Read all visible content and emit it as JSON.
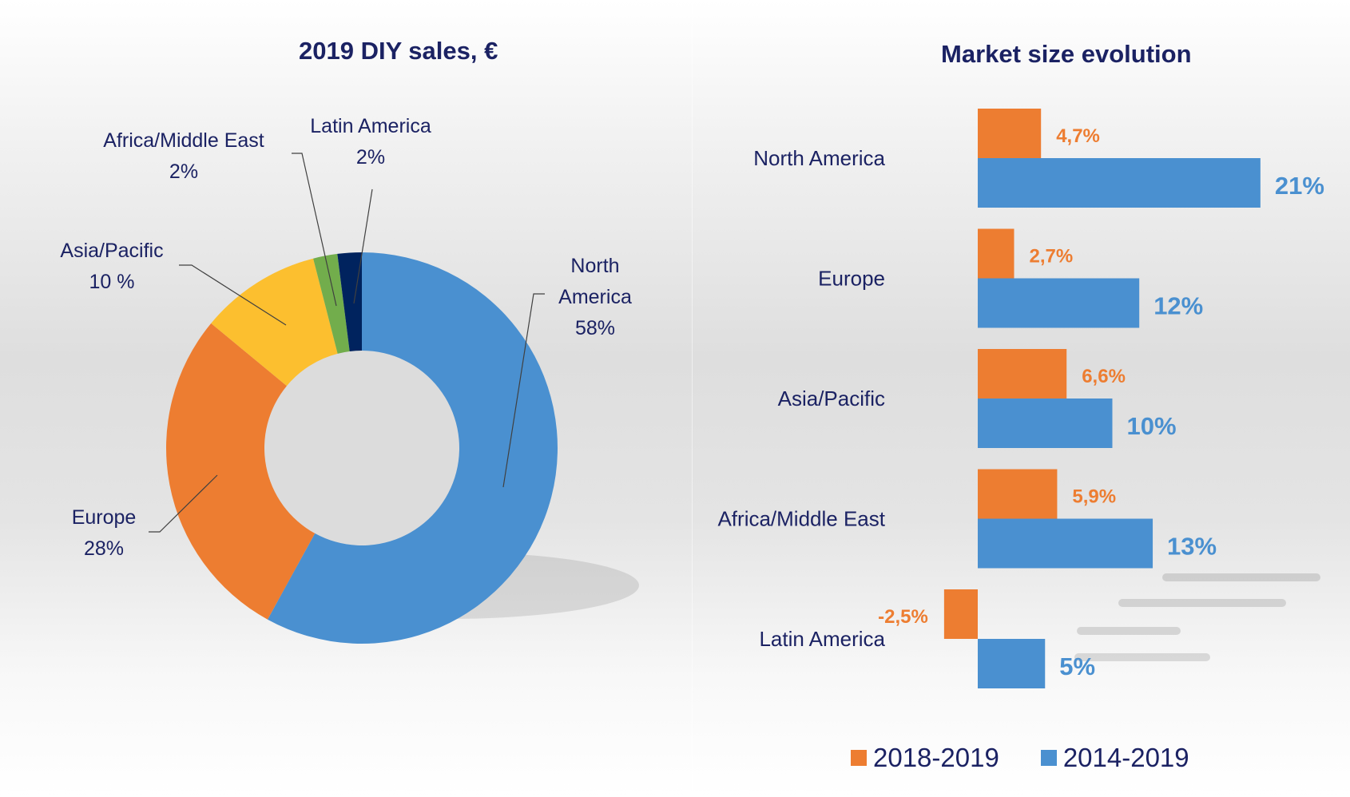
{
  "chart_data": [
    {
      "type": "pie",
      "variant": "donut",
      "title": "2019 DIY sales, €",
      "categories": [
        "North America",
        "Europe",
        "Asia/Pacific",
        "Africa/Middle East",
        "Latin America"
      ],
      "values": [
        58,
        28,
        10,
        2,
        2
      ],
      "labels": [
        "58%",
        "28%",
        "10 %",
        "2%",
        "2%"
      ],
      "colors": [
        "#4a90d0",
        "#ed7d31",
        "#fcbf2f",
        "#72ad4c",
        "#00235e"
      ],
      "unit": "%"
    },
    {
      "type": "bar",
      "orientation": "horizontal",
      "title": "Market size evolution",
      "categories": [
        "North America",
        "Europe",
        "Asia/Pacific",
        "Africa/Middle East",
        "Latin America"
      ],
      "series": [
        {
          "name": "2018-2019",
          "color": "#ed7d31",
          "values": [
            4.7,
            2.7,
            6.6,
            5.9,
            -2.5
          ],
          "labels": [
            "4,7%",
            "2,7%",
            "6,6%",
            "5,9%",
            "-2,5%"
          ]
        },
        {
          "name": "2014-2019",
          "color": "#4a90d0",
          "values": [
            21,
            12,
            10,
            13,
            5
          ],
          "labels": [
            "21%",
            "12%",
            "10%",
            "13%",
            "5%"
          ]
        }
      ],
      "xlabel": "",
      "ylabel": "",
      "legend": "bottom",
      "grid": false
    }
  ]
}
